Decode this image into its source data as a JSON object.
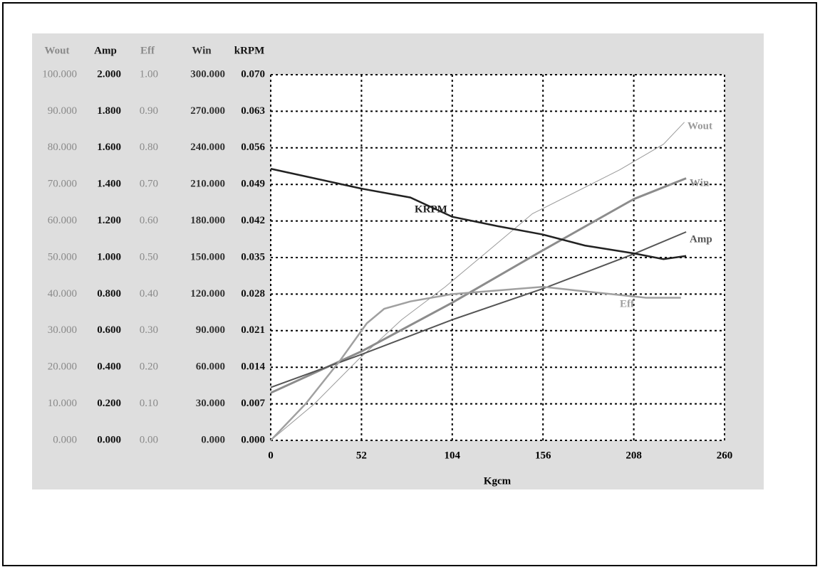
{
  "chart_data": {
    "type": "line",
    "xlabel": "Kgcm",
    "xlim": [
      0,
      260
    ],
    "xticks": [
      0,
      52,
      104,
      156,
      208,
      260
    ],
    "grid": true,
    "y_axes": [
      {
        "title": "Wout",
        "ylim": [
          0,
          100
        ],
        "yticks": [
          {
            "value": 0,
            "label": "0.000"
          },
          {
            "value": 10,
            "label": "10.000"
          },
          {
            "value": 20,
            "label": "20.000"
          },
          {
            "value": 30,
            "label": "30.000"
          },
          {
            "value": 40,
            "label": "40.000"
          },
          {
            "value": 50,
            "label": "50.000"
          },
          {
            "value": 60,
            "label": "60.000"
          },
          {
            "value": 70,
            "label": "70.000"
          },
          {
            "value": 80,
            "label": "80.000"
          },
          {
            "value": 90,
            "label": "90.000"
          },
          {
            "value": 100,
            "label": "100.000"
          }
        ]
      },
      {
        "title": "Amp",
        "ylim": [
          0,
          2
        ],
        "yticks": [
          {
            "value": 0,
            "label": "0.000"
          },
          {
            "value": 0.2,
            "label": "0.200"
          },
          {
            "value": 0.4,
            "label": "0.400"
          },
          {
            "value": 0.6,
            "label": "0.600"
          },
          {
            "value": 0.8,
            "label": "0.800"
          },
          {
            "value": 1,
            "label": "1.000"
          },
          {
            "value": 1.2,
            "label": "1.200"
          },
          {
            "value": 1.4,
            "label": "1.400"
          },
          {
            "value": 1.6,
            "label": "1.600"
          },
          {
            "value": 1.8,
            "label": "1.800"
          },
          {
            "value": 2,
            "label": "2.000"
          }
        ]
      },
      {
        "title": "Eff",
        "ylim": [
          0,
          1
        ],
        "yticks": [
          {
            "value": 0,
            "label": "0.00"
          },
          {
            "value": 0.1,
            "label": "0.10"
          },
          {
            "value": 0.2,
            "label": "0.20"
          },
          {
            "value": 0.3,
            "label": "0.30"
          },
          {
            "value": 0.4,
            "label": "0.40"
          },
          {
            "value": 0.5,
            "label": "0.50"
          },
          {
            "value": 0.6,
            "label": "0.60"
          },
          {
            "value": 0.7,
            "label": "0.70"
          },
          {
            "value": 0.8,
            "label": "0.80"
          },
          {
            "value": 0.9,
            "label": "0.90"
          },
          {
            "value": 1,
            "label": "1.00"
          }
        ]
      },
      {
        "title": "Win",
        "ylim": [
          0,
          300
        ],
        "yticks": [
          {
            "value": 0,
            "label": "0.000"
          },
          {
            "value": 30,
            "label": "30.000"
          },
          {
            "value": 60,
            "label": "60.000"
          },
          {
            "value": 90,
            "label": "90.000"
          },
          {
            "value": 120,
            "label": "120.000"
          },
          {
            "value": 150,
            "label": "150.000"
          },
          {
            "value": 180,
            "label": "180.000"
          },
          {
            "value": 210,
            "label": "210.000"
          },
          {
            "value": 240,
            "label": "240.000"
          },
          {
            "value": 270,
            "label": "270.000"
          },
          {
            "value": 300,
            "label": "300.000"
          }
        ]
      },
      {
        "title": "kRPM",
        "ylim": [
          0,
          0.07
        ],
        "yticks": [
          {
            "value": 0,
            "label": "0.000"
          },
          {
            "value": 0.007,
            "label": "0.007"
          },
          {
            "value": 0.014,
            "label": "0.014"
          },
          {
            "value": 0.021,
            "label": "0.021"
          },
          {
            "value": 0.028,
            "label": "0.028"
          },
          {
            "value": 0.035,
            "label": "0.035"
          },
          {
            "value": 0.042,
            "label": "0.042"
          },
          {
            "value": 0.049,
            "label": "0.049"
          },
          {
            "value": 0.056,
            "label": "0.056"
          },
          {
            "value": 0.063,
            "label": "0.063"
          },
          {
            "value": 0.07,
            "label": "0.070"
          }
        ]
      }
    ],
    "series": [
      {
        "name": "Wout",
        "axis": 0,
        "color": "#9a9a9a",
        "x": [
          0,
          25,
          50,
          75,
          100,
          125,
          150,
          175,
          200,
          225,
          237
        ],
        "values": [
          0,
          10,
          22,
          33,
          42,
          52,
          62,
          68,
          74,
          81,
          87
        ]
      },
      {
        "name": "Win",
        "axis": 3,
        "color": "#8c8c8c",
        "x": [
          0,
          52,
          104,
          156,
          208,
          238
        ],
        "values": [
          39,
          73,
          113,
          156,
          198,
          215
        ]
      },
      {
        "name": "Amp",
        "axis": 1,
        "color": "#555555",
        "x": [
          0,
          52,
          104,
          156,
          208,
          238
        ],
        "values": [
          0.29,
          0.47,
          0.66,
          0.83,
          1.02,
          1.14
        ]
      },
      {
        "name": "Eff",
        "axis": 2,
        "color": "#a0a0a0",
        "x": [
          0,
          20,
          40,
          55,
          65,
          80,
          104,
          130,
          156,
          175,
          195,
          215,
          235
        ],
        "values": [
          0,
          0.1,
          0.22,
          0.32,
          0.36,
          0.38,
          0.4,
          0.41,
          0.42,
          0.41,
          0.4,
          0.39,
          0.39
        ]
      },
      {
        "name": "KRPM",
        "axis": 4,
        "color": "#222222",
        "x": [
          0,
          52,
          80,
          104,
          130,
          156,
          180,
          208,
          225,
          238
        ],
        "values": [
          0.052,
          0.0482,
          0.0465,
          0.0428,
          0.041,
          0.0394,
          0.0373,
          0.0358,
          0.0347,
          0.0353
        ]
      }
    ]
  }
}
